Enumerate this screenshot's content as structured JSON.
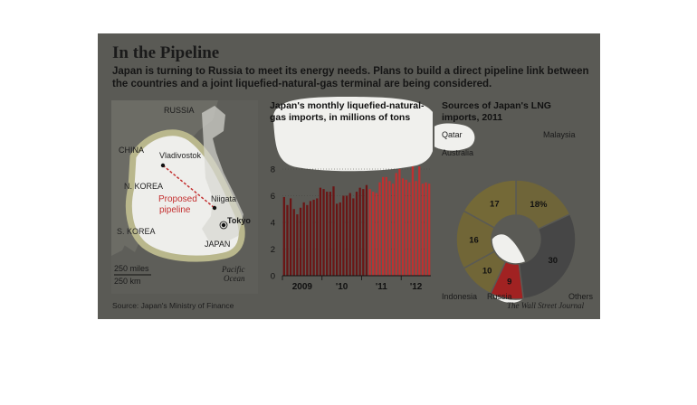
{
  "header": {
    "title": "In the Pipeline",
    "subtitle": "Japan is turning to Russia to meet its energy needs. Plans to build a direct pipeline link between the countries and a joint liquefied-natural-gas terminal are being considered."
  },
  "map": {
    "labels": {
      "russia": "RUSSIA",
      "china": "CHINA",
      "nkorea": "N. KOREA",
      "skorea": "S. KOREA",
      "japan": "JAPAN",
      "vladivostok": "Vladivostok",
      "niigata": "Niigata",
      "tokyo": "Tokyo",
      "pipeline_line1": "Proposed",
      "pipeline_line2": "pipeline",
      "ocean_line1": "Pacific",
      "ocean_line2": "Ocean",
      "scale_miles": "250 miles",
      "scale_km": "250 km"
    }
  },
  "footer": {
    "source": "Source: Japan's Ministry of Finance",
    "credit": "The Wall Street Journal"
  },
  "chart_data": [
    {
      "type": "bar",
      "title_line1": "Japan's monthly liquefied-natural-",
      "title_line2": "gas imports, in millions of tons",
      "ylim": [
        0,
        8
      ],
      "yticks": [
        "0",
        "2",
        "4",
        "6",
        "8"
      ],
      "xticks": [
        "2009",
        "'10",
        "'11",
        "'12"
      ],
      "colors": {
        "default": "#6b1515",
        "highlight": "#c03030"
      },
      "values": [
        5.9,
        5.3,
        5.8,
        5.0,
        4.6,
        5.1,
        5.5,
        5.3,
        5.6,
        5.7,
        5.8,
        6.6,
        6.5,
        6.3,
        6.3,
        6.7,
        5.4,
        5.5,
        6.0,
        6.0,
        6.2,
        5.8,
        6.3,
        6.6,
        6.5,
        6.8,
        6.5,
        6.3,
        6.2,
        7.0,
        7.4,
        7.4,
        7.1,
        6.9,
        7.7,
        8.0,
        7.3,
        7.2,
        7.0,
        8.2,
        7.1,
        8.2,
        6.9,
        7.0,
        6.9
      ],
      "highlight_from_index": 26
    },
    {
      "type": "pie",
      "title_line1": "Sources of Japan's LNG",
      "title_line2": "imports, 2011",
      "unit": "%",
      "slices": [
        {
          "name": "Malaysia",
          "value": 18,
          "label": "18%",
          "color": "#6f6539"
        },
        {
          "name": "Others",
          "value": 30,
          "label": "30",
          "color": "#464646"
        },
        {
          "name": "Russia",
          "value": 9,
          "label": "9",
          "color": "#a12222"
        },
        {
          "name": "Indonesia",
          "value": 10,
          "label": "10",
          "color": "#716637"
        },
        {
          "name": "Australia",
          "value": 16,
          "label": "16",
          "color": "#716637"
        },
        {
          "name": "Qatar",
          "value": 17,
          "label": "17",
          "color": "#746937"
        }
      ]
    }
  ]
}
